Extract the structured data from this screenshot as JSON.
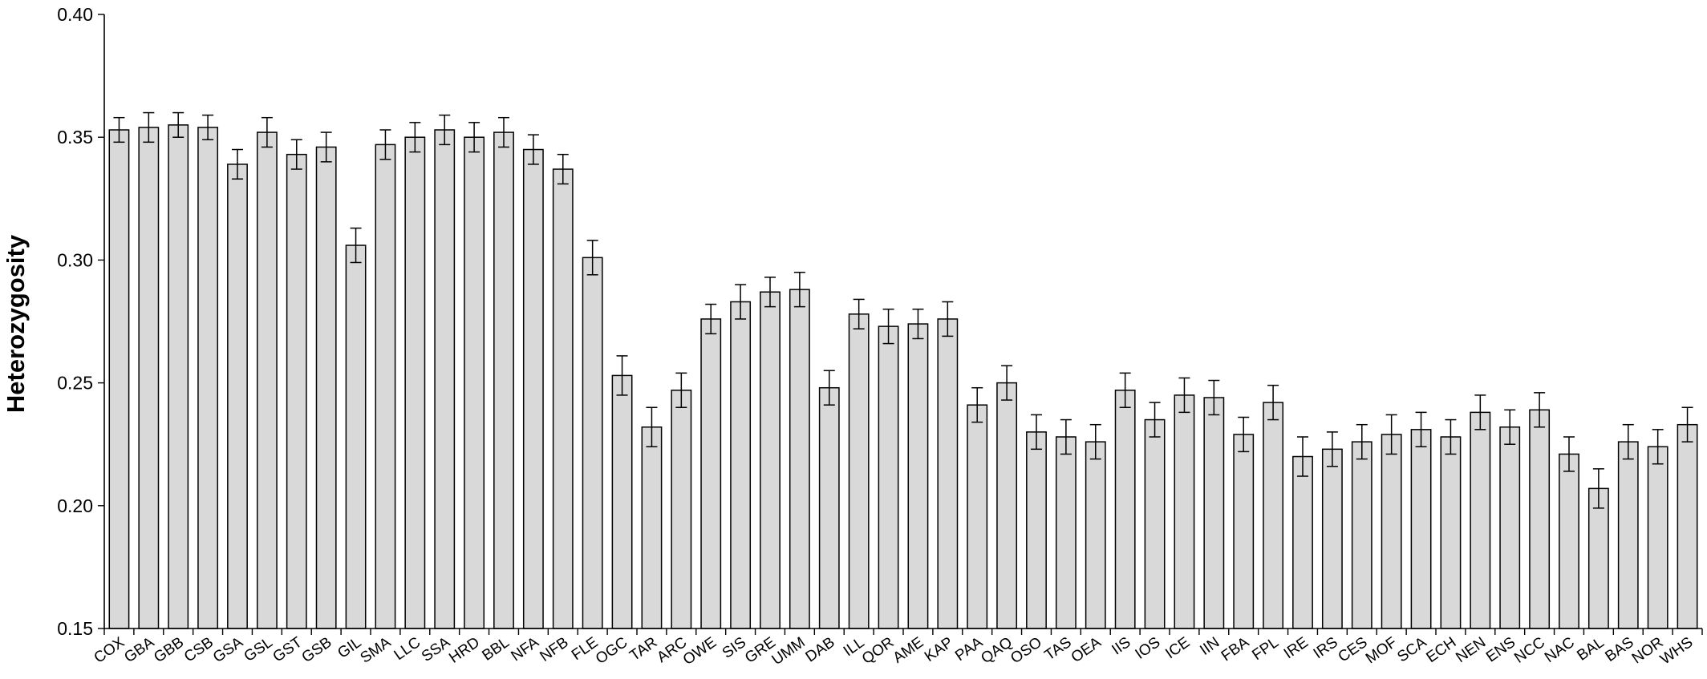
{
  "chart_data": {
    "type": "bar",
    "title": "",
    "xlabel": "",
    "ylabel": "Heterozygosity",
    "ylim": [
      0.15,
      0.4
    ],
    "yticks": [
      "0.15",
      "0.20",
      "0.25",
      "0.30",
      "0.35",
      "0.40"
    ],
    "grid": false,
    "error_bars": true,
    "colors": {
      "bar_fill": "#d9d9d9",
      "bar_stroke": "#000000"
    },
    "categories": [
      "COX",
      "GBA",
      "GBB",
      "CSB",
      "GSA",
      "GSL",
      "GST",
      "GSB",
      "GIL",
      "SMA",
      "LLC",
      "SSA",
      "HRD",
      "BBL",
      "NFA",
      "NFB",
      "FLE",
      "OGC",
      "TAR",
      "ARC",
      "OWE",
      "SIS",
      "GRE",
      "UMM",
      "DAB",
      "ILL",
      "QOR",
      "AME",
      "KAP",
      "PAA",
      "QAQ",
      "OSO",
      "TAS",
      "OEA",
      "IIS",
      "IOS",
      "ICE",
      "IIN",
      "FBA",
      "FPL",
      "IRE",
      "IRS",
      "CES",
      "MOF",
      "SCA",
      "ECH",
      "NEN",
      "ENS",
      "NCC",
      "NAC",
      "BAL",
      "BAS",
      "NOR",
      "WHS"
    ],
    "values": [
      0.353,
      0.354,
      0.355,
      0.354,
      0.339,
      0.352,
      0.343,
      0.346,
      0.306,
      0.347,
      0.35,
      0.353,
      0.35,
      0.352,
      0.345,
      0.337,
      0.301,
      0.253,
      0.232,
      0.247,
      0.276,
      0.283,
      0.287,
      0.288,
      0.248,
      0.278,
      0.273,
      0.274,
      0.276,
      0.241,
      0.25,
      0.23,
      0.228,
      0.226,
      0.247,
      0.235,
      0.245,
      0.244,
      0.229,
      0.242,
      0.22,
      0.223,
      0.226,
      0.229,
      0.231,
      0.228,
      0.238,
      0.232,
      0.239,
      0.221,
      0.207,
      0.226,
      0.224,
      0.233
    ],
    "errors": [
      0.005,
      0.006,
      0.005,
      0.005,
      0.006,
      0.006,
      0.006,
      0.006,
      0.007,
      0.006,
      0.006,
      0.006,
      0.006,
      0.006,
      0.006,
      0.006,
      0.007,
      0.008,
      0.008,
      0.007,
      0.006,
      0.007,
      0.006,
      0.007,
      0.007,
      0.006,
      0.007,
      0.006,
      0.007,
      0.007,
      0.007,
      0.007,
      0.007,
      0.007,
      0.007,
      0.007,
      0.007,
      0.007,
      0.007,
      0.007,
      0.008,
      0.007,
      0.007,
      0.008,
      0.007,
      0.007,
      0.007,
      0.007,
      0.007,
      0.007,
      0.008,
      0.007,
      0.007,
      0.007
    ]
  }
}
